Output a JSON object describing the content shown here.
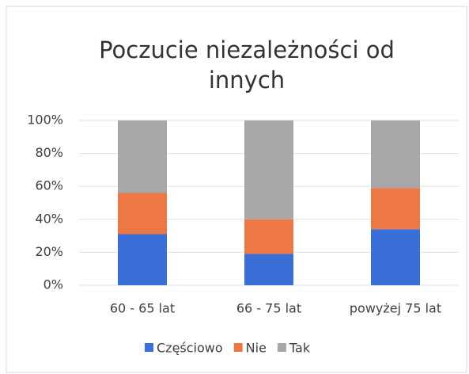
{
  "chart_data": {
    "type": "stacked_bar_100",
    "title": "Poczucie niezależności od innych",
    "categories": [
      "60 - 65 lat",
      "66 - 75 lat",
      "powyżej 75 lat"
    ],
    "series": [
      {
        "name": "Częściowo",
        "color": "#3a6fd8",
        "values": [
          31,
          19,
          34
        ]
      },
      {
        "name": "Nie",
        "color": "#ee7746",
        "values": [
          25,
          21,
          25
        ]
      },
      {
        "name": "Tak",
        "color": "#a7a7a7",
        "values": [
          44,
          60,
          41
        ]
      }
    ],
    "ylim": [
      0,
      100
    ],
    "yticks": [
      {
        "value": 0,
        "label": "0%"
      },
      {
        "value": 20,
        "label": "20%"
      },
      {
        "value": 40,
        "label": "40%"
      },
      {
        "value": 60,
        "label": "60%"
      },
      {
        "value": 80,
        "label": "80%"
      },
      {
        "value": 100,
        "label": "100%"
      }
    ],
    "grid": true,
    "legend": "bottom"
  }
}
